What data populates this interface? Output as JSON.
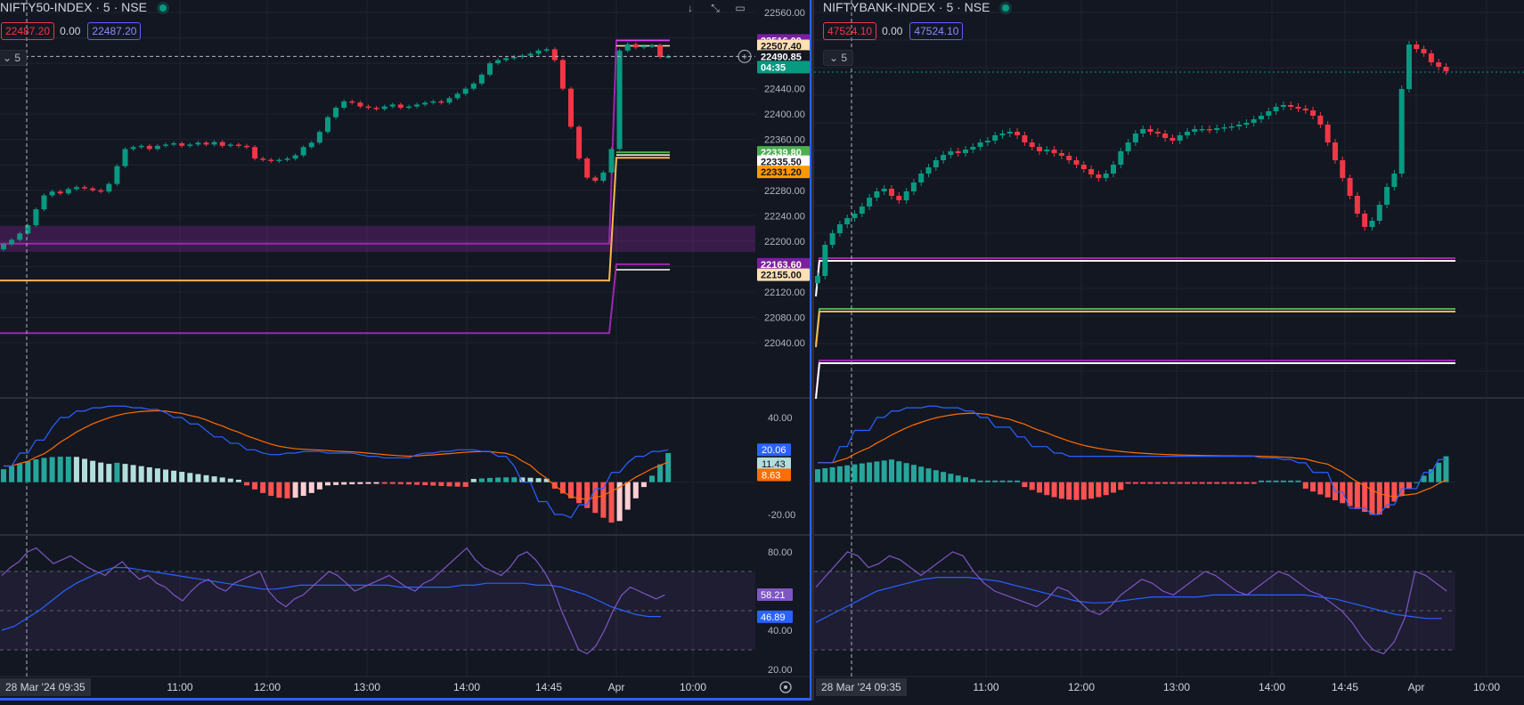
{
  "left": {
    "title": "NIFTY50-INDEX · 5 · NSE",
    "quote": {
      "bid": "22487.20",
      "spread": "0.00",
      "ask": "22487.20"
    },
    "interval_label": "5",
    "toolbar_icons": [
      "arrow-down-icon",
      "collapse-icon",
      "window-icon"
    ],
    "price_axis": [
      "22560.00",
      "22520.00",
      "22480.00",
      "22440.00",
      "22400.00",
      "22360.00",
      "22320.00",
      "22280.00",
      "22240.00",
      "22200.00",
      "22160.00",
      "22120.00",
      "22080.00",
      "22040.00"
    ],
    "price_labels": [
      {
        "text": "22516.00",
        "bg": "#7b1fa2",
        "fg": "#ffffff",
        "price": 22516
      },
      {
        "text": "22507.40",
        "bg": "#ffe0b2",
        "fg": "#131722",
        "price": 22507.4
      },
      {
        "text": "22490.85",
        "bg": "#131722",
        "fg": "#ffffff",
        "price": 22490.85
      },
      {
        "text": "04:35",
        "bg": "#089981",
        "fg": "#ffffff",
        "price": 22474
      },
      {
        "text": "22339.80",
        "bg": "#4caf50",
        "fg": "#ffffff",
        "price": 22339.8
      },
      {
        "text": "22335.50",
        "bg": "#ffffff",
        "fg": "#131722",
        "price": 22325
      },
      {
        "text": "22331.20",
        "bg": "#ff9800",
        "fg": "#131722",
        "price": 22309
      },
      {
        "text": "22163.60",
        "bg": "#7b1fa2",
        "fg": "#ffffff",
        "price": 22163.6
      },
      {
        "text": "22155.00",
        "bg": "#ffe0b2",
        "fg": "#131722",
        "price": 22147
      }
    ],
    "macd_axis": [
      "40.00",
      "-20.00"
    ],
    "macd_labels": [
      {
        "text": "20.06",
        "bg": "#2962ff",
        "fg": "#ffffff",
        "value": 20.06
      },
      {
        "text": "11.43",
        "bg": "#b2dfdb",
        "fg": "#131722",
        "value": 11.43
      },
      {
        "text": "8.63",
        "bg": "#ff6d00",
        "fg": "#ffffff",
        "value": 4.5
      }
    ],
    "rsi_axis": [
      "80.00",
      "40.00",
      "20.00"
    ],
    "rsi_labels": [
      {
        "text": "58.21",
        "bg": "#7e57c2",
        "fg": "#ffffff",
        "value": 58.21
      },
      {
        "text": "46.89",
        "bg": "#2962ff",
        "fg": "#ffffff",
        "value": 46.89
      }
    ],
    "time_start": "28 Mar '24   09:35",
    "time_ticks": [
      "11:00",
      "12:00",
      "13:00",
      "14:00",
      "14:45",
      "Apr",
      "10:00"
    ],
    "settings_icon": "settings-gear-icon"
  },
  "right": {
    "title": "NIFTYBANK-INDEX · 5 · NSE",
    "quote": {
      "bid": "47524.10",
      "spread": "0.00",
      "ask": "47524.10"
    },
    "interval_label": "5",
    "time_start": "28 Mar '24   09:35",
    "time_ticks": [
      "11:00",
      "12:00",
      "13:00",
      "14:00",
      "14:45",
      "Apr",
      "10:00"
    ]
  },
  "colors": {
    "up": "#089981",
    "down": "#f23645",
    "background": "#131722",
    "grid": "#1f2330",
    "macd_line": "#2962ff",
    "signal_line": "#ff6d00",
    "rsi_line": "#7e57c2",
    "rsi_ma": "#2962ff",
    "pivot_purple": "#9c27b0",
    "pivot_orange": "#ffb74d"
  },
  "chart_data": [
    {
      "type": "candlestick",
      "title": "NIFTY50-INDEX · 5 · NSE",
      "ylim": [
        22020,
        22570
      ],
      "y_ticks": [
        22040,
        22080,
        22120,
        22160,
        22200,
        22240,
        22280,
        22320,
        22360,
        22400,
        22440,
        22480,
        22520,
        22560
      ],
      "x_ticks": [
        "11:00",
        "12:00",
        "13:00",
        "14:00",
        "14:45",
        "Apr",
        "10:00"
      ],
      "closes": [
        22195,
        22202,
        22212,
        22225,
        22250,
        22272,
        22278,
        22275,
        22282,
        22285,
        22283,
        22280,
        22278,
        22290,
        22318,
        22345,
        22348,
        22350,
        22345,
        22350,
        22352,
        22354,
        22350,
        22352,
        22355,
        22352,
        22356,
        22350,
        22352,
        22350,
        22348,
        22330,
        22328,
        22326,
        22328,
        22330,
        22335,
        22348,
        22355,
        22372,
        22395,
        22410,
        22420,
        22418,
        22412,
        22410,
        22408,
        22412,
        22415,
        22410,
        22412,
        22415,
        22418,
        22420,
        22418,
        22425,
        22432,
        22440,
        22448,
        22462,
        22480,
        22485,
        22488,
        22490,
        22492,
        22495,
        22500,
        22502,
        22485,
        22440,
        22380,
        22330,
        22300,
        22295,
        22308,
        22345,
        22500,
        22510,
        22505,
        22507,
        22508,
        22490,
        22491
      ],
      "pivot_lines": [
        {
          "label": "upper-purple",
          "before": 22196,
          "after": 22516
        },
        {
          "label": "orange",
          "before": 22138,
          "after": 22331.2
        },
        {
          "label": "lower-purple",
          "before": 22055,
          "after": 22163.6
        }
      ],
      "zone": [
        22183,
        22224
      ]
    },
    {
      "type": "candlestick",
      "title": "NIFTYBANK-INDEX · 5 · NSE",
      "x_ticks": [
        "11:00",
        "12:00",
        "13:00",
        "14:00",
        "14:45",
        "Apr",
        "10:00"
      ],
      "last": 47524.1
    }
  ]
}
